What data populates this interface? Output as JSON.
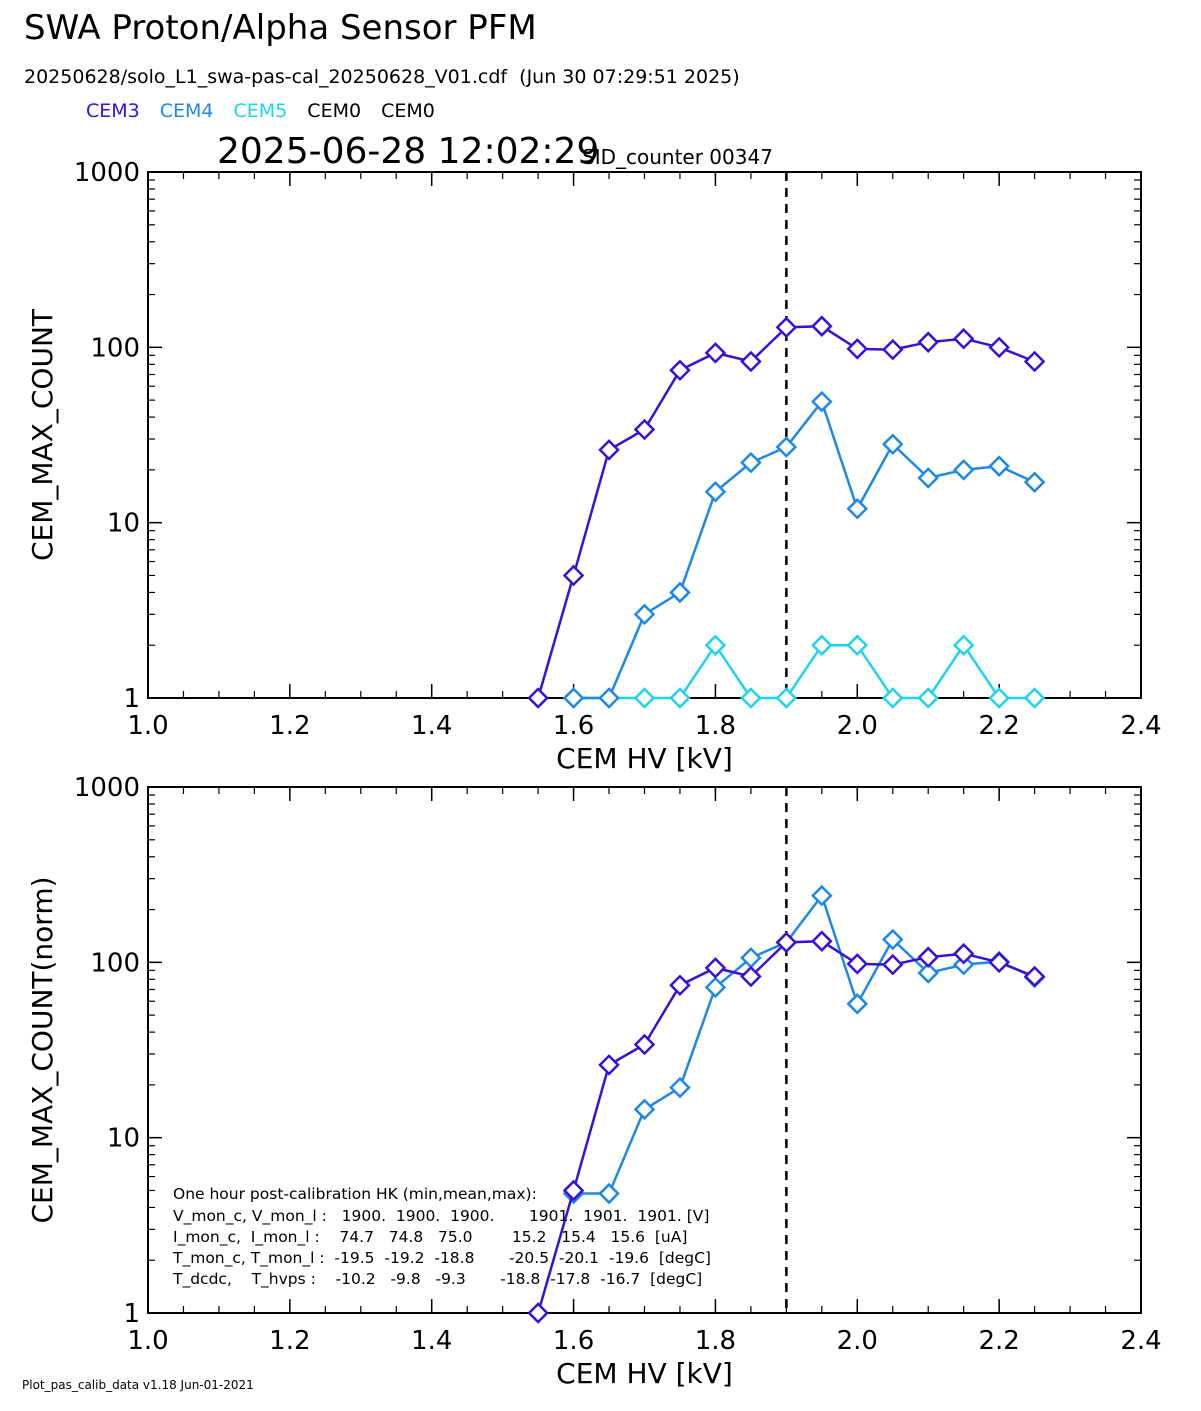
{
  "title": "SWA Proton/Alpha Sensor PFM",
  "subtitle": "20250628/solo_L1_swa-pas-cal_20250628_V01.cdf  (Jun 30 07:29:51 2025)",
  "legend": [
    {
      "label": "CEM3",
      "color": "#3a0fd6"
    },
    {
      "label": "CEM4",
      "color": "#1e88e5"
    },
    {
      "label": "CEM5",
      "color": "#1ed3ee"
    },
    {
      "label": "CEM0",
      "color": "#000000"
    },
    {
      "label": "CEM0",
      "color": "#000000"
    }
  ],
  "timestamp": "2025-06-28 12:02:29",
  "sid_counter": "SID_counter 00347",
  "footer": "Plot_pas_calib_data v1.18 Jun-01-2021",
  "hk": {
    "title": "One hour post-calibration HK (min,mean,max):",
    "rows": [
      "V_mon_c, V_mon_l :   1900.  1900.  1900.       1901.  1901.  1901. [V]",
      "I_mon_c,  I_mon_l :    74.7   74.8   75.0        15.2   15.4   15.6  [uA]",
      "T_mon_c, T_mon_l :  -19.5  -19.2  -18.8       -20.5  -20.1  -19.6  [degC]",
      "T_dcdc,    T_hvps :    -10.2   -9.8   -9.3       -18.8  -17.8  -16.7  [degC]"
    ]
  },
  "chart_data": [
    {
      "type": "line",
      "xlabel": "CEM HV [kV]",
      "ylabel": "CEM_MAX_COUNT",
      "xlim": [
        1.0,
        2.4
      ],
      "ylim": [
        1,
        1000
      ],
      "yscale": "log",
      "xticks": [
        "1.0",
        "1.2",
        "1.4",
        "1.6",
        "1.8",
        "2.0",
        "2.2",
        "2.4"
      ],
      "yticks": [
        "1",
        "10",
        "100",
        "1000"
      ],
      "vline": 1.9,
      "series": [
        {
          "name": "CEM3",
          "color": "#3a0fd6",
          "x": [
            1.55,
            1.6,
            1.65,
            1.7,
            1.75,
            1.8,
            1.85,
            1.9,
            1.95,
            2.0,
            2.05,
            2.1,
            2.15,
            2.2,
            2.25
          ],
          "y": [
            1,
            5,
            26,
            34,
            74,
            93,
            83,
            130,
            132,
            98,
            97,
            107,
            112,
            100,
            83
          ]
        },
        {
          "name": "CEM4",
          "color": "#1e88e5",
          "x": [
            1.6,
            1.65,
            1.7,
            1.75,
            1.8,
            1.85,
            1.9,
            1.95,
            2.0,
            2.05,
            2.1,
            2.15,
            2.2,
            2.25
          ],
          "y": [
            1,
            1,
            3,
            4,
            15,
            22,
            27,
            49,
            12,
            28,
            18,
            20,
            21,
            17
          ]
        },
        {
          "name": "CEM5",
          "color": "#1ed3ee",
          "x": [
            1.6,
            1.65,
            1.7,
            1.75,
            1.8,
            1.85,
            1.9,
            1.95,
            2.0,
            2.05,
            2.1,
            2.15,
            2.2,
            2.25
          ],
          "y": [
            1,
            1,
            1,
            1,
            2,
            1,
            1,
            2,
            2,
            1,
            1,
            2,
            1,
            1
          ]
        }
      ]
    },
    {
      "type": "line",
      "xlabel": "CEM HV [kV]",
      "ylabel": "CEM_MAX_COUNT(norm)",
      "xlim": [
        1.0,
        2.4
      ],
      "ylim": [
        1,
        1000
      ],
      "yscale": "log",
      "xticks": [
        "1.0",
        "1.2",
        "1.4",
        "1.6",
        "1.8",
        "2.0",
        "2.2",
        "2.4"
      ],
      "yticks": [
        "1",
        "10",
        "100",
        "1000"
      ],
      "vline": 1.9,
      "series": [
        {
          "name": "CEM3",
          "color": "#3a0fd6",
          "x": [
            1.55,
            1.6,
            1.65,
            1.7,
            1.75,
            1.8,
            1.85,
            1.9,
            1.95,
            2.0,
            2.05,
            2.1,
            2.15,
            2.2,
            2.25
          ],
          "y": [
            1,
            5,
            26,
            34,
            74,
            93,
            83,
            130,
            132,
            98,
            97,
            107,
            112,
            100,
            83
          ]
        },
        {
          "name": "CEM4",
          "color": "#1e88e5",
          "x": [
            1.6,
            1.65,
            1.7,
            1.75,
            1.8,
            1.85,
            1.9,
            1.95,
            2.0,
            2.05,
            2.1,
            2.15,
            2.2,
            2.25
          ],
          "y": [
            4.8,
            4.8,
            14.5,
            19.3,
            72,
            106,
            130,
            240,
            58,
            135,
            87,
            97,
            101,
            82
          ]
        }
      ]
    }
  ]
}
